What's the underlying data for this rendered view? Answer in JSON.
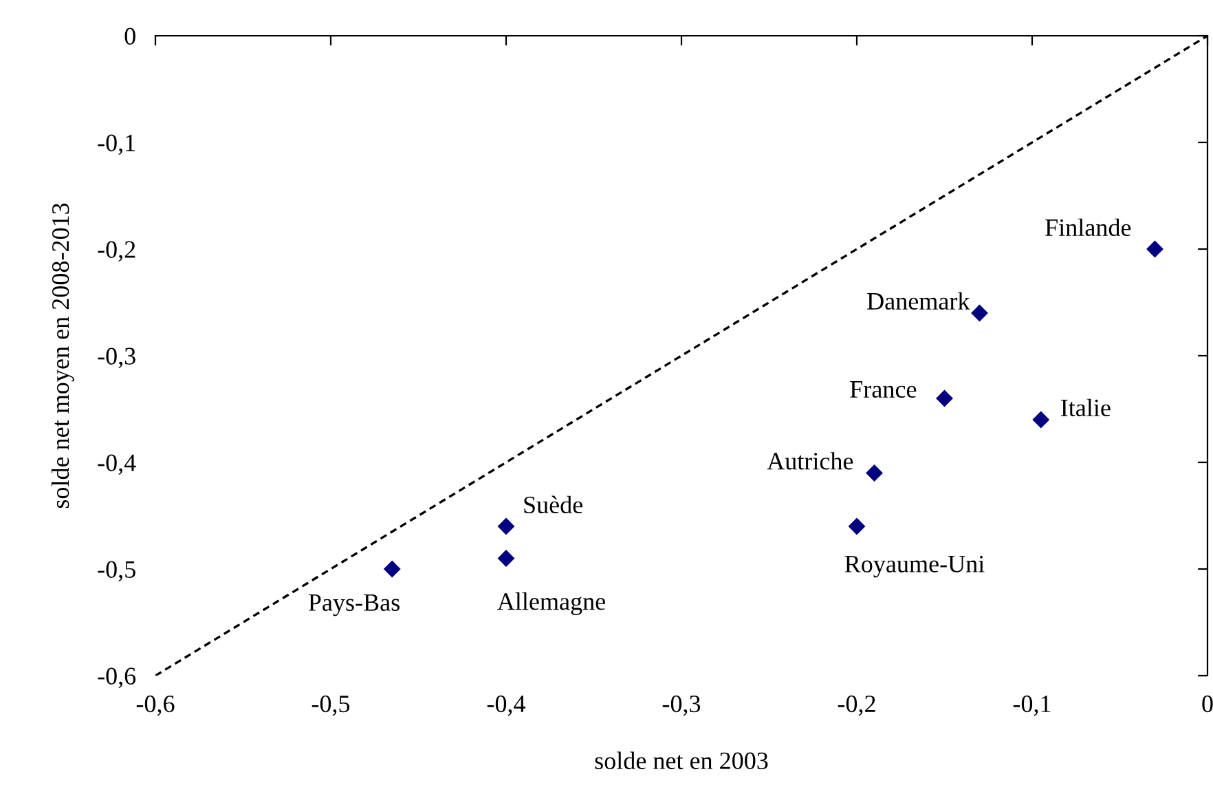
{
  "chart_data": {
    "type": "scatter",
    "xlabel": "solde net en 2003",
    "ylabel": "solde net moyen en 2008-2013",
    "series": [
      {
        "color": "#000080",
        "marker": "diamond",
        "x": [
          -0.03,
          -0.13,
          -0.15,
          -0.095,
          -0.19,
          -0.2,
          -0.4,
          -0.4,
          -0.465
        ],
        "values": [
          -0.2,
          -0.26,
          -0.34,
          -0.36,
          -0.41,
          -0.46,
          -0.46,
          -0.49,
          -0.5
        ]
      },
      {
        "type": "line",
        "color": "#000000",
        "line_style": "dashed",
        "marker": "none",
        "x": [
          -0.6,
          0
        ],
        "values": [
          -0.6,
          0
        ]
      }
    ],
    "annotations": [
      {
        "text": "Finlande",
        "x": -0.03,
        "y": -0.2
      },
      {
        "text": "Danemark",
        "x": -0.13,
        "y": -0.26
      },
      {
        "text": "France",
        "x": -0.15,
        "y": -0.34
      },
      {
        "text": "Italie",
        "x": -0.095,
        "y": -0.36
      },
      {
        "text": "Autriche",
        "x": -0.19,
        "y": -0.41
      },
      {
        "text": "Royaume-Uni",
        "x": -0.2,
        "y": -0.46
      },
      {
        "text": "Suède",
        "x": -0.4,
        "y": -0.46
      },
      {
        "text": "Allemagne",
        "x": -0.4,
        "y": -0.49
      },
      {
        "text": "Pays-Bas",
        "x": -0.465,
        "y": -0.5
      }
    ],
    "xlim": [
      -0.6,
      0
    ],
    "ylim": [
      -0.6,
      0
    ],
    "xticks": [
      {
        "value": -0.6,
        "label": "-0,6"
      },
      {
        "value": -0.5,
        "label": "-0,5"
      },
      {
        "value": -0.4,
        "label": "-0,4"
      },
      {
        "value": -0.3,
        "label": "-0,3"
      },
      {
        "value": -0.2,
        "label": "-0,2"
      },
      {
        "value": -0.1,
        "label": "-0,1"
      },
      0
    ],
    "yticks": [
      {
        "value": -0.6,
        "label": "-0,6"
      },
      {
        "value": -0.5,
        "label": "-0,5"
      },
      {
        "value": -0.4,
        "label": "-0,4"
      },
      {
        "value": -0.3,
        "label": "-0,3"
      },
      {
        "value": -0.2,
        "label": "-0,2"
      },
      {
        "value": -0.1,
        "label": "-0,1"
      },
      0
    ],
    "grid": false,
    "legend": false
  }
}
